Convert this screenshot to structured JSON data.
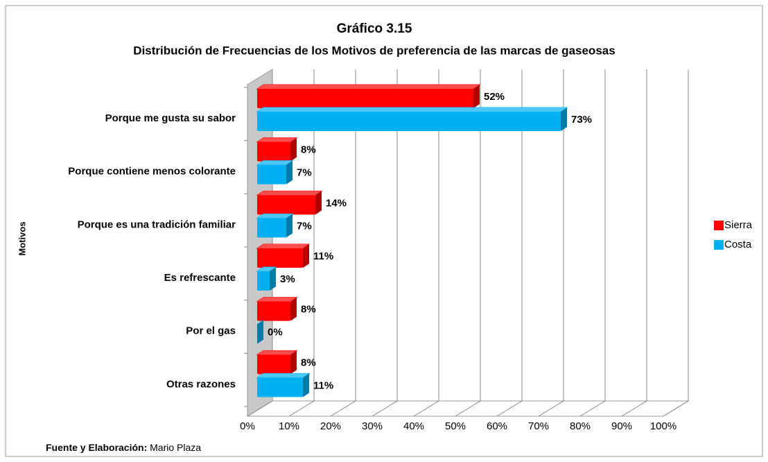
{
  "chart_data": {
    "type": "bar3d_horizontal",
    "title": "Gráfico 3.15",
    "subtitle": "Distribución de Frecuencias de los Motivos de preferencia de las marcas de gaseosas",
    "y_label": "Motivos",
    "source_label": "Fuente y Elaboración:",
    "source": "Mario Plaza",
    "categories": [
      "Porque me gusta su sabor",
      "Porque contiene menos colorante",
      "Porque es una tradición familiar",
      "Es refrescante",
      "Por el gas",
      "Otras razones"
    ],
    "series": [
      {
        "name": "Sierra",
        "color": "#ff0000",
        "values": [
          52,
          8,
          14,
          11,
          8,
          8
        ],
        "value_labels": [
          "52%",
          "8%",
          "14%",
          "11%",
          "8%",
          "8%"
        ]
      },
      {
        "name": "Costa",
        "color": "#00b0f0",
        "values": [
          73,
          7,
          7,
          3,
          0,
          11
        ],
        "value_labels": [
          "73%",
          "7%",
          "7%",
          "3%",
          "0%",
          "11%"
        ]
      }
    ],
    "xlim": [
      0,
      100
    ],
    "xticks": [
      {
        "value": 0,
        "label": "0%"
      },
      {
        "value": 10,
        "label": "10%"
      },
      {
        "value": 20,
        "label": "20%"
      },
      {
        "value": 30,
        "label": "30%"
      },
      {
        "value": 40,
        "label": "40%"
      },
      {
        "value": 50,
        "label": "50%"
      },
      {
        "value": 60,
        "label": "60%"
      },
      {
        "value": 70,
        "label": "70%"
      },
      {
        "value": 80,
        "label": "80%"
      },
      {
        "value": 90,
        "label": "90%"
      },
      {
        "value": 100,
        "label": "100%"
      }
    ],
    "grid": true,
    "legend": "right"
  }
}
